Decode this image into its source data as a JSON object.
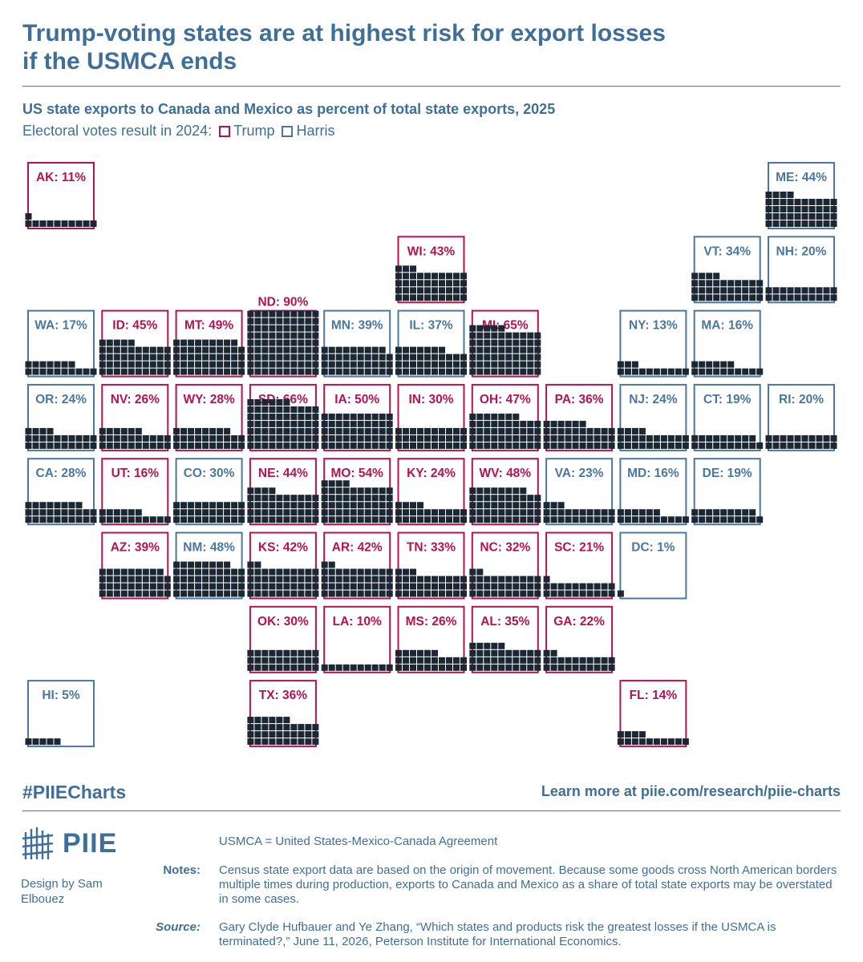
{
  "title_line1": "Trump-voting states are at highest risk for export losses",
  "title_line2": "if the USMCA ends",
  "subtitle": "US state exports to Canada and Mexico as percent of total state exports, 2025",
  "legend": {
    "prefix": "Electoral votes result in 2024:",
    "trump_label": "Trump",
    "harris_label": "Harris"
  },
  "colors": {
    "trump": "#b5124f",
    "harris": "#4a77a0",
    "cell": "#1b2733",
    "title": "#3f6f98"
  },
  "chart_data": {
    "type": "tile-map waffle",
    "unit": "percent",
    "states": [
      {
        "abbr": "AK",
        "value": 11,
        "party": "Trump",
        "col": 0,
        "row": 0
      },
      {
        "abbr": "ME",
        "value": 44,
        "party": "Harris",
        "col": 10,
        "row": 0
      },
      {
        "abbr": "WI",
        "value": 43,
        "party": "Trump",
        "col": 5,
        "row": 1
      },
      {
        "abbr": "VT",
        "value": 34,
        "party": "Harris",
        "col": 9,
        "row": 1
      },
      {
        "abbr": "NH",
        "value": 20,
        "party": "Harris",
        "col": 10,
        "row": 1
      },
      {
        "abbr": "WA",
        "value": 17,
        "party": "Harris",
        "col": 0,
        "row": 2
      },
      {
        "abbr": "ID",
        "value": 45,
        "party": "Trump",
        "col": 1,
        "row": 2
      },
      {
        "abbr": "MT",
        "value": 49,
        "party": "Trump",
        "col": 2,
        "row": 2
      },
      {
        "abbr": "ND",
        "value": 90,
        "party": "Trump",
        "col": 3,
        "row": 2
      },
      {
        "abbr": "MN",
        "value": 39,
        "party": "Harris",
        "col": 4,
        "row": 2
      },
      {
        "abbr": "IL",
        "value": 37,
        "party": "Harris",
        "col": 5,
        "row": 2
      },
      {
        "abbr": "MI",
        "value": 65,
        "party": "Trump",
        "col": 6,
        "row": 2
      },
      {
        "abbr": "NY",
        "value": 13,
        "party": "Harris",
        "col": 8,
        "row": 2
      },
      {
        "abbr": "MA",
        "value": 16,
        "party": "Harris",
        "col": 9,
        "row": 2
      },
      {
        "abbr": "OR",
        "value": 24,
        "party": "Harris",
        "col": 0,
        "row": 3
      },
      {
        "abbr": "NV",
        "value": 26,
        "party": "Trump",
        "col": 1,
        "row": 3
      },
      {
        "abbr": "WY",
        "value": 28,
        "party": "Trump",
        "col": 2,
        "row": 3
      },
      {
        "abbr": "SD",
        "value": 66,
        "party": "Trump",
        "col": 3,
        "row": 3
      },
      {
        "abbr": "IA",
        "value": 50,
        "party": "Trump",
        "col": 4,
        "row": 3
      },
      {
        "abbr": "IN",
        "value": 30,
        "party": "Trump",
        "col": 5,
        "row": 3
      },
      {
        "abbr": "OH",
        "value": 47,
        "party": "Trump",
        "col": 6,
        "row": 3
      },
      {
        "abbr": "PA",
        "value": 36,
        "party": "Trump",
        "col": 7,
        "row": 3
      },
      {
        "abbr": "NJ",
        "value": 24,
        "party": "Harris",
        "col": 8,
        "row": 3
      },
      {
        "abbr": "CT",
        "value": 19,
        "party": "Harris",
        "col": 9,
        "row": 3
      },
      {
        "abbr": "RI",
        "value": 20,
        "party": "Harris",
        "col": 10,
        "row": 3
      },
      {
        "abbr": "CA",
        "value": 28,
        "party": "Harris",
        "col": 0,
        "row": 4
      },
      {
        "abbr": "UT",
        "value": 16,
        "party": "Trump",
        "col": 1,
        "row": 4
      },
      {
        "abbr": "CO",
        "value": 30,
        "party": "Harris",
        "col": 2,
        "row": 4
      },
      {
        "abbr": "NE",
        "value": 44,
        "party": "Trump",
        "col": 3,
        "row": 4
      },
      {
        "abbr": "MO",
        "value": 54,
        "party": "Trump",
        "col": 4,
        "row": 4
      },
      {
        "abbr": "KY",
        "value": 24,
        "party": "Trump",
        "col": 5,
        "row": 4
      },
      {
        "abbr": "WV",
        "value": 48,
        "party": "Trump",
        "col": 6,
        "row": 4
      },
      {
        "abbr": "VA",
        "value": 23,
        "party": "Harris",
        "col": 7,
        "row": 4
      },
      {
        "abbr": "MD",
        "value": 16,
        "party": "Harris",
        "col": 8,
        "row": 4
      },
      {
        "abbr": "DE",
        "value": 19,
        "party": "Harris",
        "col": 9,
        "row": 4
      },
      {
        "abbr": "AZ",
        "value": 39,
        "party": "Trump",
        "col": 1,
        "row": 5
      },
      {
        "abbr": "NM",
        "value": 48,
        "party": "Harris",
        "col": 2,
        "row": 5
      },
      {
        "abbr": "KS",
        "value": 42,
        "party": "Trump",
        "col": 3,
        "row": 5
      },
      {
        "abbr": "AR",
        "value": 42,
        "party": "Trump",
        "col": 4,
        "row": 5
      },
      {
        "abbr": "TN",
        "value": 33,
        "party": "Trump",
        "col": 5,
        "row": 5
      },
      {
        "abbr": "NC",
        "value": 32,
        "party": "Trump",
        "col": 6,
        "row": 5
      },
      {
        "abbr": "SC",
        "value": 21,
        "party": "Trump",
        "col": 7,
        "row": 5
      },
      {
        "abbr": "DC",
        "value": 1,
        "party": "Harris",
        "col": 8,
        "row": 5
      },
      {
        "abbr": "OK",
        "value": 30,
        "party": "Trump",
        "col": 3,
        "row": 6
      },
      {
        "abbr": "LA",
        "value": 10,
        "party": "Trump",
        "col": 4,
        "row": 6
      },
      {
        "abbr": "MS",
        "value": 26,
        "party": "Trump",
        "col": 5,
        "row": 6
      },
      {
        "abbr": "AL",
        "value": 35,
        "party": "Trump",
        "col": 6,
        "row": 6
      },
      {
        "abbr": "GA",
        "value": 22,
        "party": "Trump",
        "col": 7,
        "row": 6
      },
      {
        "abbr": "HI",
        "value": 5,
        "party": "Harris",
        "col": 0,
        "row": 7
      },
      {
        "abbr": "TX",
        "value": 36,
        "party": "Trump",
        "col": 3,
        "row": 7
      },
      {
        "abbr": "FL",
        "value": 14,
        "party": "Trump",
        "col": 8,
        "row": 7
      }
    ]
  },
  "footer": {
    "hashtag": "#PIIECharts",
    "learn_more": "Learn more at piie.com/research/piie-charts",
    "logo_text": "PIIE",
    "design_by": "Design by Sam Elbouez",
    "definition": "USMCA =  United States-Mexico-Canada Agreement",
    "notes_label": "Notes:",
    "notes_text": "Census state export data are based on the origin of movement. Because some goods cross North American borders multiple times during production, exports to Canada and Mexico as a share of total state exports may be overstated in some cases.",
    "source_label": "Source:",
    "source_text": "Gary Clyde Hufbauer and Ye Zhang, “Which states and products risk the greatest losses if the USMCA is terminated?,” June 11, 2026, Peterson Institute for International Economics."
  }
}
